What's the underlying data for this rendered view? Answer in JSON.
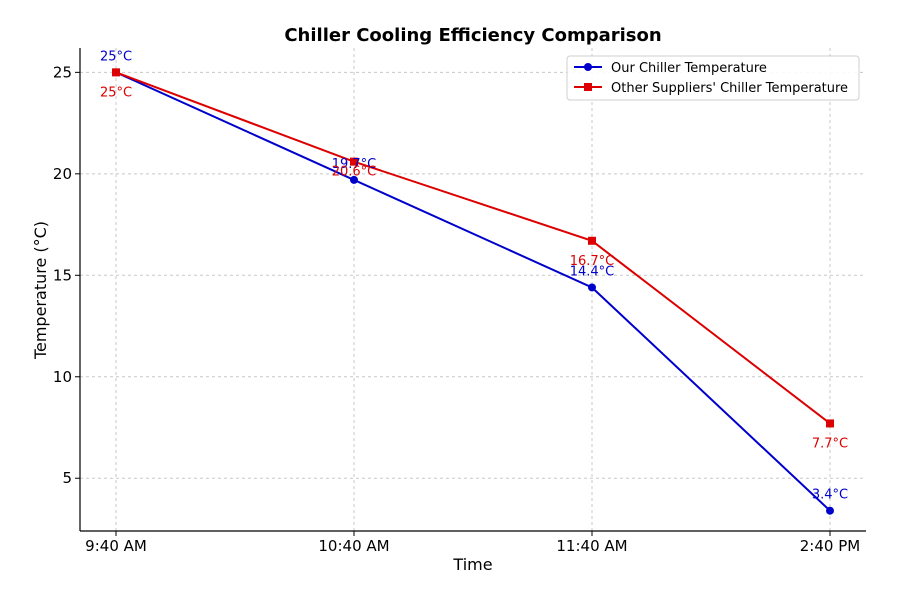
{
  "chart_data": {
    "type": "line",
    "title": "Chiller Cooling Efficiency Comparison",
    "xlabel": "Time",
    "ylabel": "Temperature (°C)",
    "categories": [
      "9:40 AM",
      "10:40 AM",
      "11:40 AM",
      "2:40 PM"
    ],
    "ylim": [
      2.4,
      26.2
    ],
    "yticks": [
      5,
      10,
      15,
      20,
      25
    ],
    "grid": true,
    "legend_position": "top-right",
    "series": [
      {
        "name": "Our Chiller Temperature",
        "values": [
          25,
          19.7,
          14.4,
          3.4
        ],
        "labels": [
          "25°C",
          "19.7°C",
          "14.4°C",
          "3.4°C"
        ],
        "color": "#0000cc",
        "marker": "circle"
      },
      {
        "name": "Other Suppliers' Chiller Temperature",
        "values": [
          25,
          20.6,
          16.7,
          7.7
        ],
        "labels": [
          "25°C",
          "20.6°C",
          "16.7°C",
          "7.7°C"
        ],
        "color": "#dd0000",
        "marker": "square"
      }
    ]
  }
}
